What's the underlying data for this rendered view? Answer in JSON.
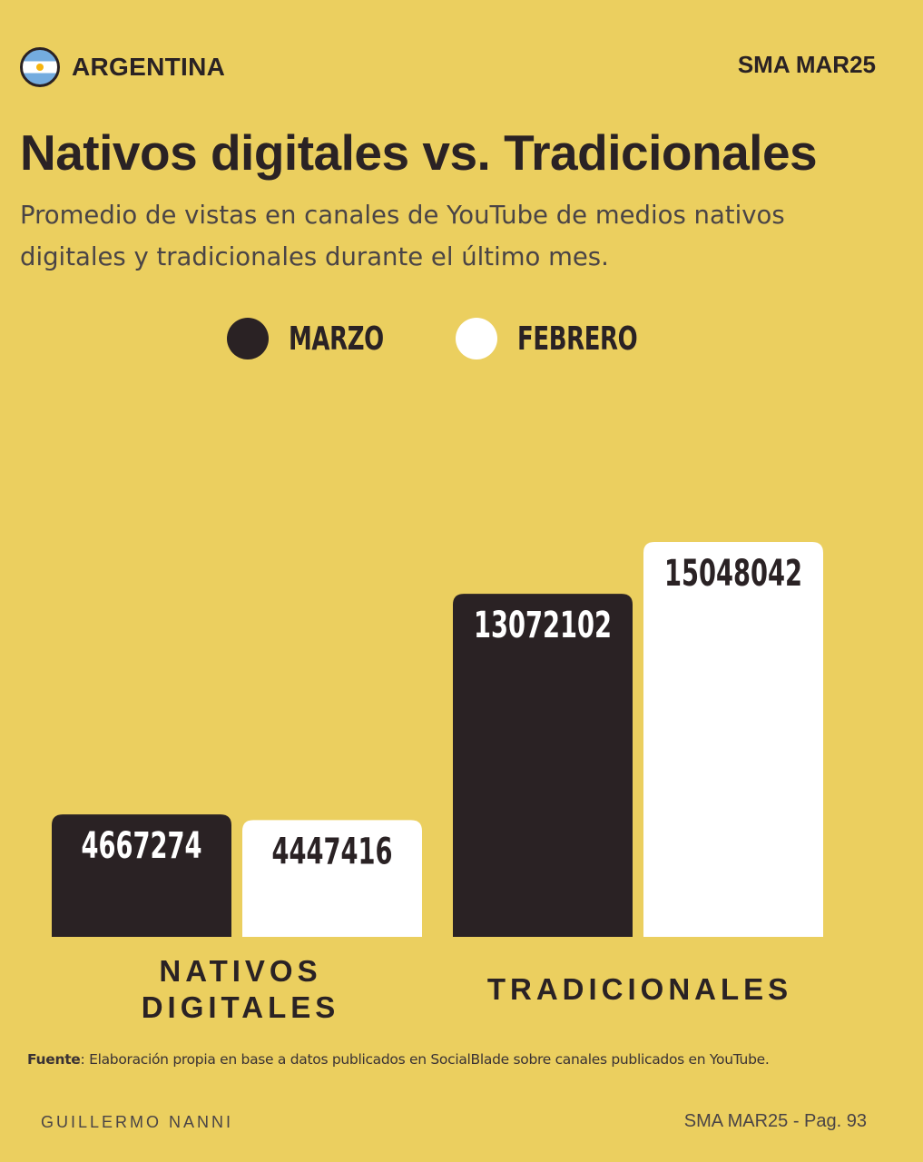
{
  "header": {
    "country": "ARGENTINA",
    "edition": "SMA MAR25"
  },
  "title": "Nativos digitales vs. Tradicionales",
  "subtitle": "Promedio de vistas en canales de YouTube de medios nativos digitales y tradicionales durante el último mes.",
  "icons": {
    "flag": "argentina-flag-icon"
  },
  "colors": {
    "background": "#ebcf5f",
    "marzo": "#2a2224",
    "febrero": "#ffffff"
  },
  "chart_data": {
    "type": "bar",
    "categories": [
      "NATIVOS DIGITALES",
      "TRADICIONALES"
    ],
    "series": [
      {
        "name": "MARZO",
        "values": [
          4667274,
          13072102
        ],
        "color": "#2a2224"
      },
      {
        "name": "FEBRERO",
        "values": [
          4447416,
          15048042
        ],
        "color": "#ffffff"
      }
    ],
    "legend_position": "top-center",
    "grid": false
  },
  "footer": {
    "source_label": "Fuente",
    "source_text": ": Elaboración propia en base a datos publicados en SocialBlade sobre canales publicados en YouTube.",
    "author": "GUILLERMO NANNI",
    "page": "SMA MAR25 - Pag. 93"
  }
}
